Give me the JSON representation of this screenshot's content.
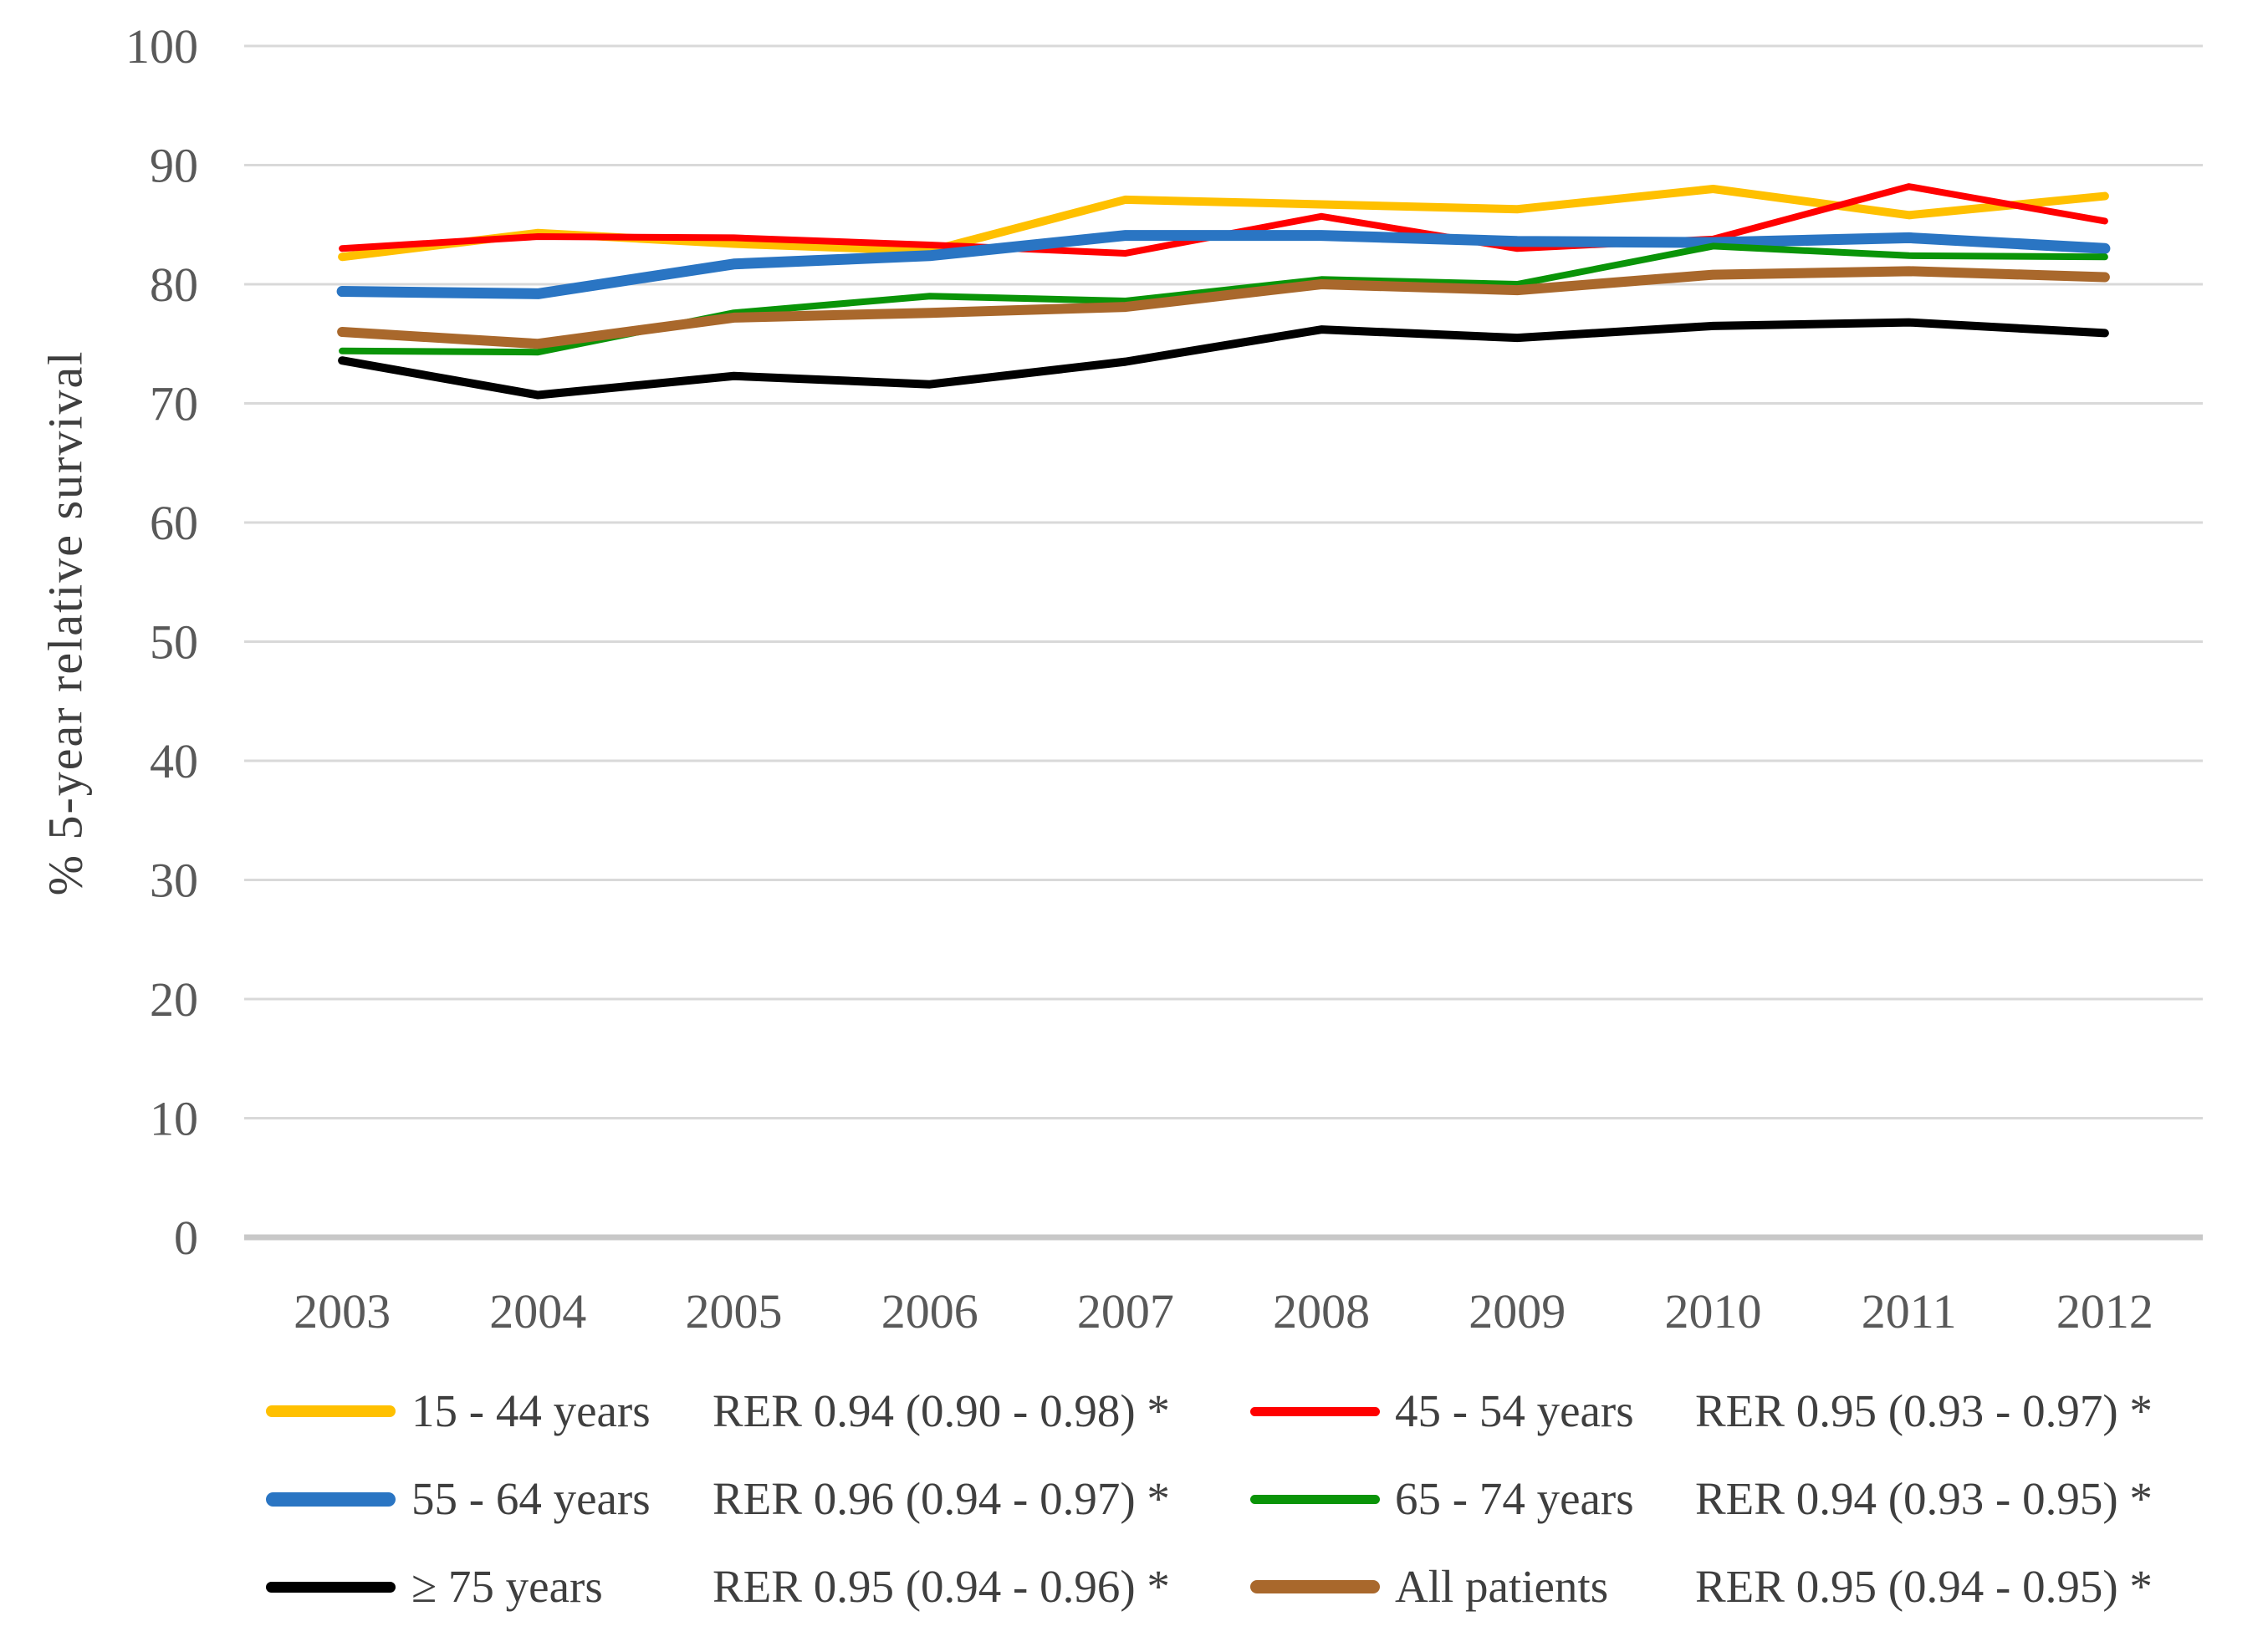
{
  "chart_data": {
    "type": "line",
    "title": "",
    "xlabel": "",
    "ylabel": "% 5-year relative survival",
    "ylim": [
      0,
      100
    ],
    "yticks": [
      0,
      10,
      20,
      30,
      40,
      50,
      60,
      70,
      80,
      90,
      100
    ],
    "grid": "horizontal",
    "legend_position": "bottom-two-columns",
    "x": [
      2003,
      2004,
      2005,
      2006,
      2007,
      2008,
      2009,
      2010,
      2011,
      2012
    ],
    "series": [
      {
        "name": "15 - 44 years",
        "rer": "RER 0.94 (0.90 - 0.98) *",
        "color": "#FFC000",
        "values": [
          82.3,
          84.3,
          83.4,
          82.8,
          87.1,
          86.7,
          86.3,
          88.0,
          85.8,
          87.4
        ]
      },
      {
        "name": "45 - 54 years",
        "rer": "RER 0.95 (0.93 - 0.97) *",
        "color": "#FF0000",
        "values": [
          83.0,
          84.0,
          83.9,
          83.3,
          82.6,
          85.7,
          83.0,
          83.8,
          88.2,
          85.3
        ]
      },
      {
        "name": "55 - 64 years",
        "rer": "RER 0.96 (0.94 - 0.97) *",
        "color": "#2A75C3",
        "values": [
          79.4,
          79.2,
          81.7,
          82.4,
          84.1,
          84.1,
          83.6,
          83.5,
          83.9,
          83.0
        ]
      },
      {
        "name": "65 - 74 years",
        "rer": "RER 0.94 (0.93 - 0.95) *",
        "color": "#0A9408",
        "values": [
          74.4,
          74.3,
          77.6,
          79.0,
          78.6,
          80.4,
          80.0,
          83.2,
          82.4,
          82.3
        ]
      },
      {
        "name": "≥ 75 years",
        "rer": "RER 0.95 (0.94 - 0.96) *",
        "color": "#000000",
        "values": [
          73.6,
          70.7,
          72.3,
          71.6,
          73.5,
          76.2,
          75.5,
          76.5,
          76.8,
          75.9
        ]
      },
      {
        "name": "All patients",
        "rer": "RER 0.95 (0.94 - 0.95) *",
        "color": "#A9682C",
        "values": [
          76.0,
          75.0,
          77.2,
          77.6,
          78.1,
          80.0,
          79.5,
          80.8,
          81.1,
          80.6
        ]
      }
    ]
  }
}
